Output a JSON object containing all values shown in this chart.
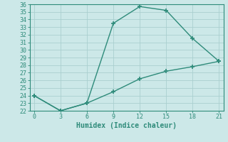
{
  "line1_x": [
    0,
    3,
    6,
    9,
    12,
    15,
    18,
    21
  ],
  "line1_y": [
    24,
    22,
    23,
    33.5,
    35.7,
    35.2,
    31.5,
    28.5
  ],
  "line2_x": [
    0,
    3,
    6,
    9,
    12,
    15,
    18,
    21
  ],
  "line2_y": [
    24,
    22,
    23,
    24.5,
    26.2,
    27.2,
    27.8,
    28.5
  ],
  "line_color": "#2e8b7a",
  "bg_color": "#cce8e8",
  "grid_color": "#aacfcf",
  "xlabel": "Humidex (Indice chaleur)",
  "xlim": [
    -0.5,
    21.5
  ],
  "ylim": [
    22,
    36
  ],
  "xticks": [
    0,
    3,
    6,
    9,
    12,
    15,
    18,
    21
  ],
  "yticks": [
    22,
    23,
    24,
    25,
    26,
    27,
    28,
    29,
    30,
    31,
    32,
    33,
    34,
    35,
    36
  ],
  "marker": "+"
}
